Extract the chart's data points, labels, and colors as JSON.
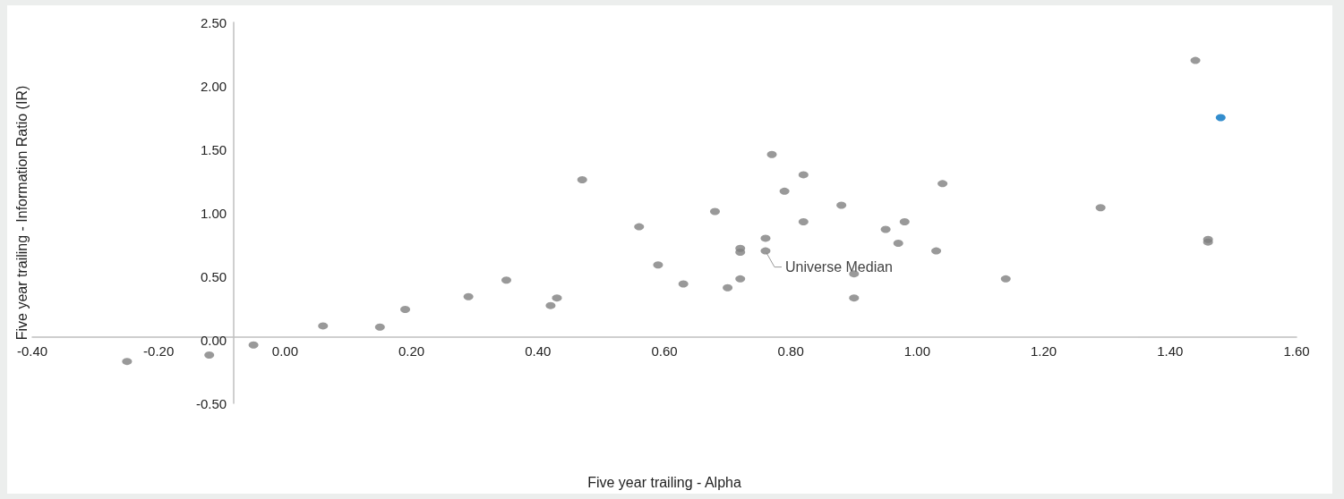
{
  "chart_data": {
    "type": "scatter",
    "xlabel": "Five year trailing - Alpha",
    "ylabel": "Five year trailing - Information Ratio (IR)",
    "xlim": [
      -0.4,
      1.6
    ],
    "xticks": [
      {
        "value": -0.4,
        "label": "-0.40"
      },
      {
        "value": -0.2,
        "label": "-0.20"
      },
      {
        "value": 0,
        "label": "0.00"
      },
      {
        "value": 0.2,
        "label": "0.20"
      },
      {
        "value": 0.4,
        "label": "0.40"
      },
      {
        "value": 0.6,
        "label": "0.60"
      },
      {
        "value": 0.8,
        "label": "0.80"
      },
      {
        "value": 1.0,
        "label": "1.00"
      },
      {
        "value": 1.2,
        "label": "1.20"
      },
      {
        "value": 1.4,
        "label": "1.40"
      },
      {
        "value": 1.6,
        "label": "1.60"
      }
    ],
    "ylim": [
      -0.5,
      2.5
    ],
    "yticks": [
      {
        "value": -0.5,
        "label": "-0.50"
      },
      {
        "value": 0,
        "label": "0.00"
      },
      {
        "value": 0.5,
        "label": "0.50"
      },
      {
        "value": 1.0,
        "label": "1.00"
      },
      {
        "value": 1.5,
        "label": "1.50"
      },
      {
        "value": 2.0,
        "label": "2.00"
      },
      {
        "value": 2.5,
        "label": "2.50"
      }
    ],
    "grid": false,
    "marker": "circle",
    "series": [
      {
        "color": "#808080",
        "x": [
          -0.25,
          -0.12,
          -0.05,
          0.06,
          0.15,
          0.19,
          0.29,
          0.35,
          0.42,
          0.43,
          0.47,
          0.56,
          0.59,
          0.63,
          0.68,
          0.7,
          0.72,
          0.72,
          0.72,
          0.76,
          0.76,
          0.77,
          0.79,
          0.82,
          0.82,
          0.88,
          0.9,
          0.9,
          0.95,
          0.97,
          0.98,
          1.03,
          1.04,
          1.14,
          1.29,
          1.44,
          1.46,
          1.46
        ],
        "values": [
          -0.17,
          -0.12,
          -0.04,
          0.11,
          0.1,
          0.24,
          0.34,
          0.47,
          0.27,
          0.33,
          1.26,
          0.89,
          0.59,
          0.44,
          1.01,
          0.41,
          0.72,
          0.69,
          0.48,
          0.8,
          0.7,
          1.46,
          1.17,
          1.3,
          0.93,
          1.06,
          0.52,
          0.33,
          0.87,
          0.76,
          0.93,
          0.7,
          1.23,
          0.48,
          1.04,
          2.2,
          0.79,
          0.77
        ]
      },
      {
        "color": "#0070c0",
        "x": [
          1.48
        ],
        "values": [
          1.75
        ]
      }
    ],
    "annotations": [
      {
        "text": "Universe Median",
        "x": 0.76,
        "y": 0.7
      }
    ]
  }
}
